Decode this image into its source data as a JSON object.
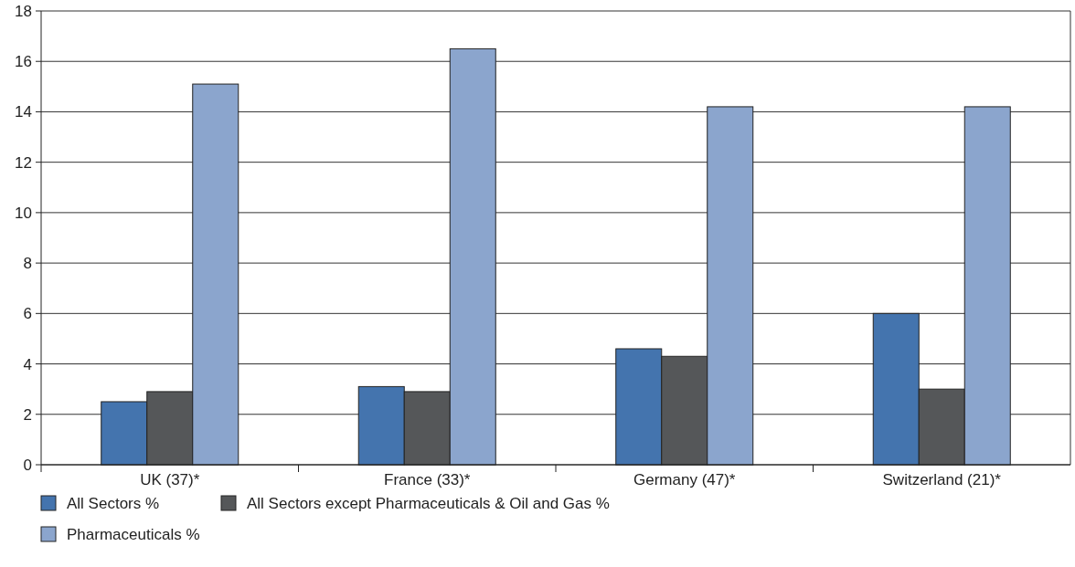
{
  "chart_data": {
    "type": "bar",
    "categories": [
      "UK (37)*",
      "France (33)*",
      "Germany (47)*",
      "Switzerland (21)*"
    ],
    "series": [
      {
        "name": "All Sectors %",
        "color": "#4474ae",
        "values": [
          2.5,
          3.1,
          4.6,
          6.0
        ]
      },
      {
        "name": "All Sectors except Pharmaceuticals & Oil and Gas %",
        "color": "#555759",
        "values": [
          2.9,
          2.9,
          4.3,
          3.0
        ]
      },
      {
        "name": "Pharmaceuticals %",
        "color": "#8ba5cd",
        "values": [
          15.1,
          16.5,
          14.2,
          14.2
        ]
      }
    ],
    "ylim": [
      0,
      18
    ],
    "yticks": [
      0,
      2,
      4,
      6,
      8,
      10,
      12,
      14,
      16,
      18
    ],
    "grid": "y",
    "legend": "bottom left"
  }
}
